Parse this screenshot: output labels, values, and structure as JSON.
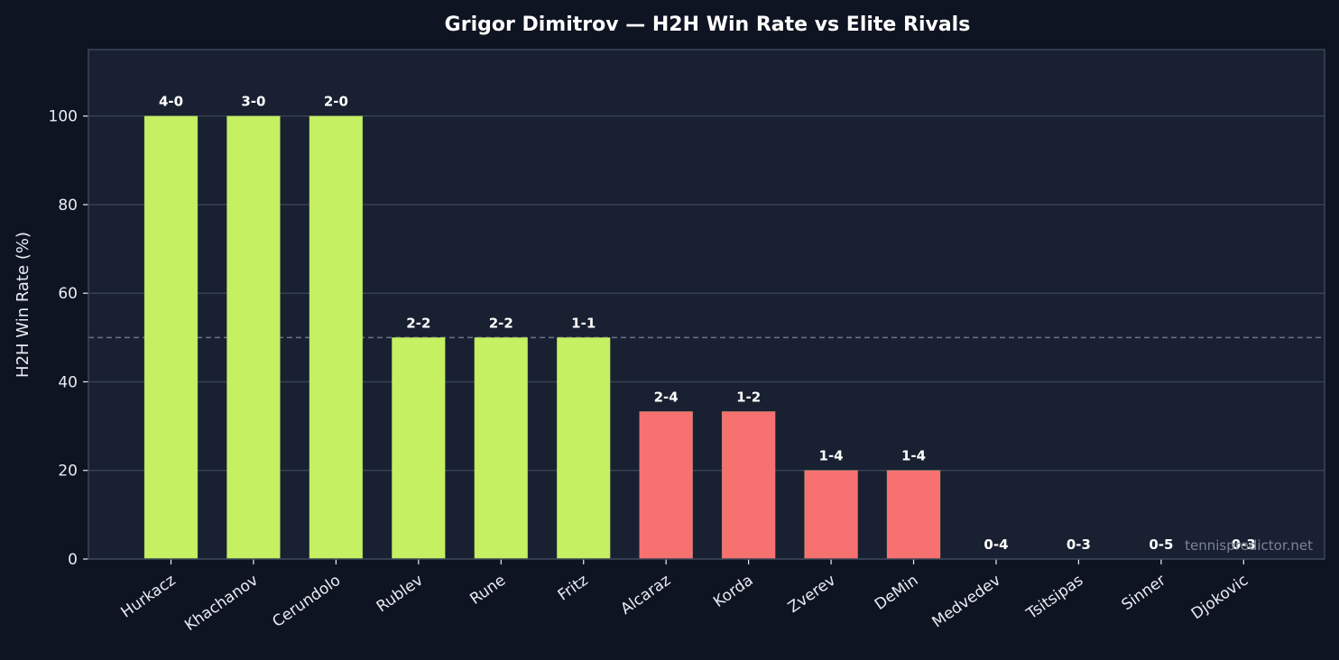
{
  "colors": {
    "page_background": "#0e1421",
    "plot_background": "#182031",
    "win_bar": "#c4f062",
    "loss_bar": "#f87171",
    "grid": "#2a3446",
    "reference_line": "#6b7587",
    "axis": "#3a4658",
    "text": "#e8ecf2"
  },
  "watermark": "tennispredictor.net",
  "chart_data": {
    "type": "bar",
    "title": "Grigor Dimitrov — H2H Win Rate vs Elite Rivals",
    "xlabel": "",
    "ylabel": "H2H Win Rate (%)",
    "ylim": [
      0,
      115
    ],
    "yticks": [
      0,
      20,
      40,
      60,
      80,
      100
    ],
    "grid": true,
    "reference_line": 50,
    "categories": [
      "Hurkacz",
      "Khachanov",
      "Cerundolo",
      "Rublev",
      "Rune",
      "Fritz",
      "Alcaraz",
      "Korda",
      "Zverev",
      "DeMin",
      "Medvedev",
      "Tsitsipas",
      "Sinner",
      "Djokovic"
    ],
    "values": [
      100,
      100,
      100,
      50,
      50,
      50,
      33.3,
      33.3,
      20,
      20,
      0,
      0,
      0,
      0
    ],
    "records": [
      "4-0",
      "3-0",
      "2-0",
      "2-2",
      "2-2",
      "1-1",
      "2-4",
      "1-2",
      "1-4",
      "1-4",
      "0-4",
      "0-3",
      "0-5",
      "0-3"
    ]
  }
}
